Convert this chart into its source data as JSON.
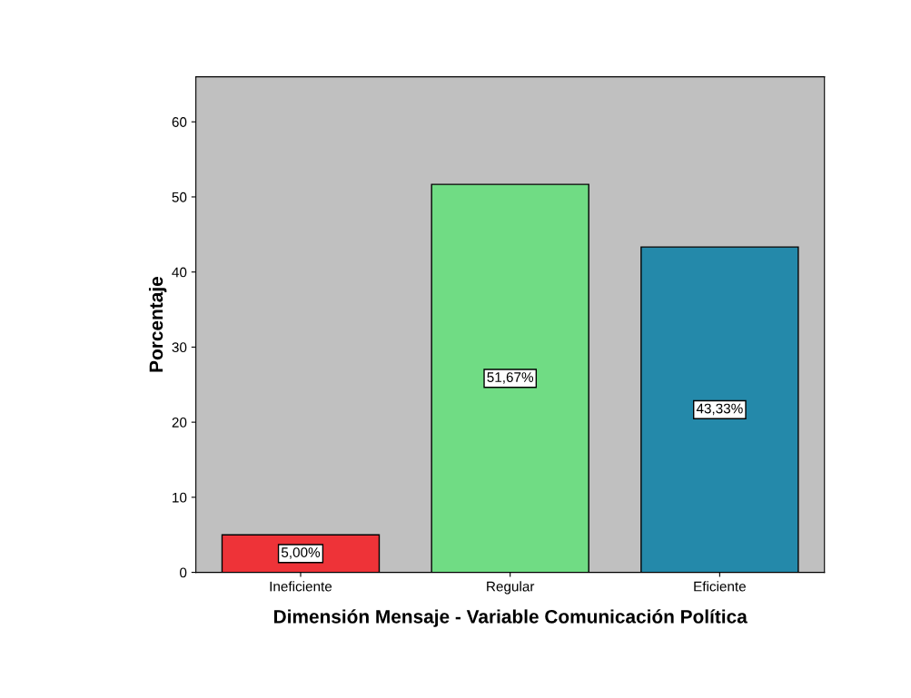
{
  "chart_data": {
    "type": "bar",
    "xlabel": "Dimensión Mensaje - Variable Comunicación Política",
    "ylabel": "Porcentaje",
    "categories": [
      "Ineficiente",
      "Regular",
      "Eficiente"
    ],
    "values": [
      5.0,
      51.67,
      43.33
    ],
    "colors": [
      "#ee3338",
      "#70dc84",
      "#2489aa"
    ],
    "value_labels": [
      "5,00%",
      "51,67%",
      "43,33%"
    ],
    "ylim": [
      0,
      66
    ],
    "yticks": [
      0,
      10,
      20,
      30,
      40,
      50,
      60
    ],
    "grid": false
  }
}
